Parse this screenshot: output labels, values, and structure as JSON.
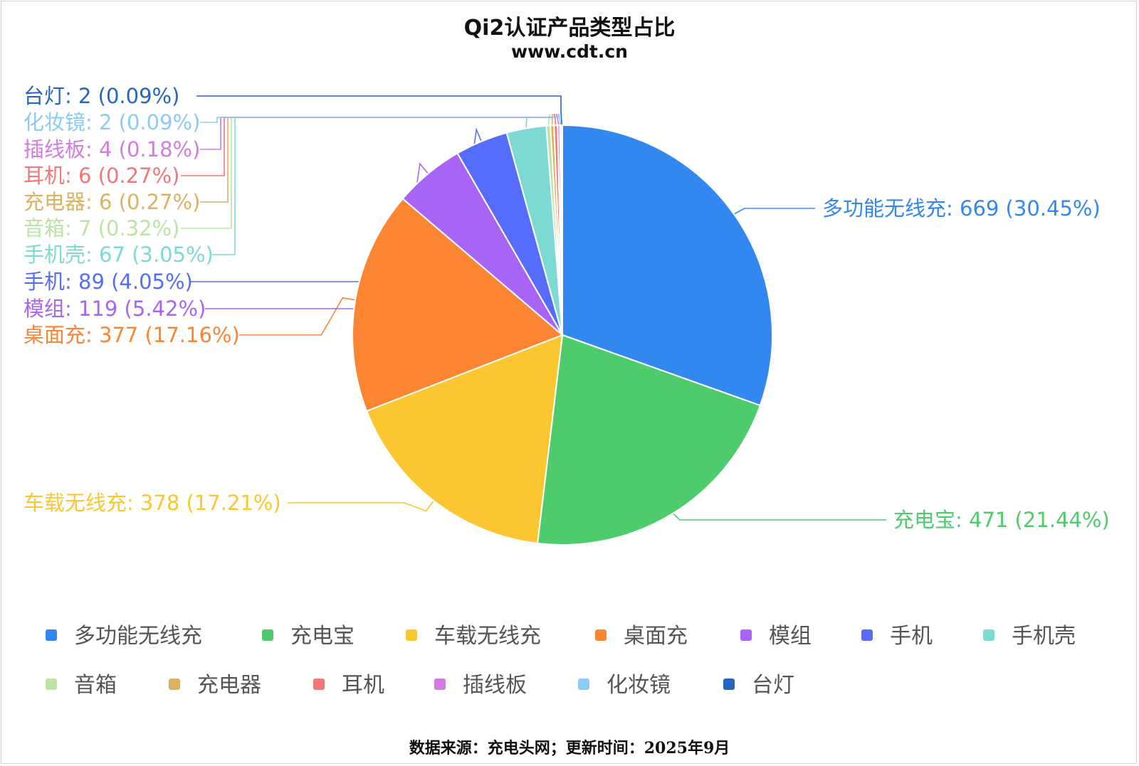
{
  "chart_data": {
    "type": "pie",
    "title": "Qi2认证产品类型占比",
    "subtitle": "www.cdt.cn",
    "legend_position": "bottom",
    "source": "数据来源：充电头网；更新时间：2025年9月",
    "slices": [
      {
        "name": "多功能无线充",
        "value": 669,
        "percent": "30.45%",
        "color": "#3388f0"
      },
      {
        "name": "充电宝",
        "value": 471,
        "percent": "21.44%",
        "color": "#4ecb6d"
      },
      {
        "name": "车载无线充",
        "value": 378,
        "percent": "17.21%",
        "color": "#fbc630"
      },
      {
        "name": "桌面充",
        "value": 377,
        "percent": "17.16%",
        "color": "#fb8532"
      },
      {
        "name": "模组",
        "value": 119,
        "percent": "5.42%",
        "color": "#a865f5"
      },
      {
        "name": "手机",
        "value": 89,
        "percent": "4.05%",
        "color": "#566dfc"
      },
      {
        "name": "手机壳",
        "value": 67,
        "percent": "3.05%",
        "color": "#7dd9d4"
      },
      {
        "name": "音箱",
        "value": 7,
        "percent": "0.32%",
        "color": "#bde3a4"
      },
      {
        "name": "充电器",
        "value": 6,
        "percent": "0.27%",
        "color": "#dcb25f"
      },
      {
        "name": "耳机",
        "value": 6,
        "percent": "0.27%",
        "color": "#f37777"
      },
      {
        "name": "插线板",
        "value": 4,
        "percent": "0.18%",
        "color": "#d27be0"
      },
      {
        "name": "化妆镜",
        "value": 2,
        "percent": "0.09%",
        "color": "#8ccbf5"
      },
      {
        "name": "台灯",
        "value": 2,
        "percent": "0.09%",
        "color": "#2664c2"
      }
    ]
  }
}
